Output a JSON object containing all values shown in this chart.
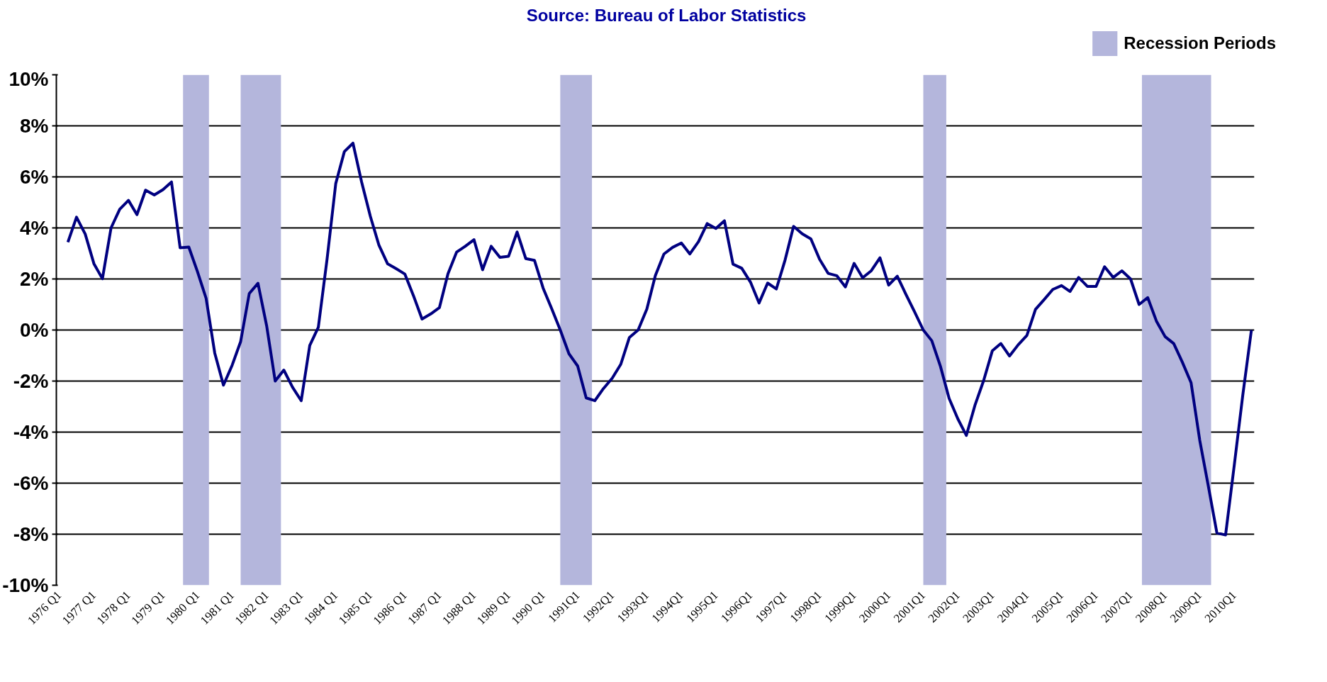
{
  "chart_data": {
    "type": "line",
    "annotations": [
      "Source: Bureau of Labor Statistics"
    ],
    "x": [
      "1976-04",
      "1976-07",
      "1976-10",
      "1977-01",
      "1977-04",
      "1977-07",
      "1977-10",
      "1978-01",
      "1978-04",
      "1978-07",
      "1978-10",
      "1979-01",
      "1979-04",
      "1979-07",
      "1979-10",
      "1980-01",
      "1980-04",
      "1980-07",
      "1980-10",
      "1981-01",
      "1981-04",
      "1981-07",
      "1981-10",
      "1982-01",
      "1982-04",
      "1982-07",
      "1982-10",
      "1983-01",
      "1983-04",
      "1983-07",
      "1983-10",
      "1984-01",
      "1984-04",
      "1984-07",
      "1984-10",
      "1985-01",
      "1985-04",
      "1985-07",
      "1985-10",
      "1986-01",
      "1986-04",
      "1986-07",
      "1986-10",
      "1987-01",
      "1987-04",
      "1987-07",
      "1987-10",
      "1988-01",
      "1988-04",
      "1988-07",
      "1988-10",
      "1989-01",
      "1989-04",
      "1989-07",
      "1989-10",
      "1990-01",
      "1990-04",
      "1990-07",
      "1990-10",
      "1991-01",
      "1991-04",
      "1991-07",
      "1991-10",
      "1992-01",
      "1992-04",
      "1992-07",
      "1992-10",
      "1993-01",
      "1993-04",
      "1993-07",
      "1993-10",
      "1994-01",
      "1994-04",
      "1994-07",
      "1994-10",
      "1995-01",
      "1995-04",
      "1995-07",
      "1995-10",
      "1996-01",
      "1996-04",
      "1996-07",
      "1996-10",
      "1997-01",
      "1997-04",
      "1997-07",
      "1997-10",
      "1998-01",
      "1998-04",
      "1998-07",
      "1998-10",
      "1999-01",
      "1999-04",
      "1999-07",
      "1999-10",
      "2000-01",
      "2000-04",
      "2000-07",
      "2000-10",
      "2001-01",
      "2001-04",
      "2001-07",
      "2001-10",
      "2002-01",
      "2002-04",
      "2002-07",
      "2002-10",
      "2003-01",
      "2003-04",
      "2003-07",
      "2003-10",
      "2004-01",
      "2004-04",
      "2004-07",
      "2004-10",
      "2005-01",
      "2005-04",
      "2005-07",
      "2005-10",
      "2006-01",
      "2006-04",
      "2006-07",
      "2006-10",
      "2007-01",
      "2007-04",
      "2007-07",
      "2007-10",
      "2008-01",
      "2008-04",
      "2008-07",
      "2008-10",
      "2009-01",
      "2009-04",
      "2009-07",
      "2009-10",
      "2010-01",
      "2010-04",
      "2010-07"
    ],
    "series": [
      {
        "color": "#000080",
        "values": [
          3.44,
          4.42,
          3.76,
          2.6,
          2.01,
          4.0,
          4.73,
          5.08,
          4.52,
          5.48,
          5.29,
          5.5,
          5.8,
          3.22,
          3.25,
          2.28,
          1.24,
          -0.9,
          -2.16,
          -1.38,
          -0.45,
          1.43,
          1.83,
          0.16,
          -2.0,
          -1.57,
          -2.24,
          -2.77,
          -0.61,
          0.11,
          2.77,
          5.74,
          6.99,
          7.32,
          5.79,
          4.45,
          3.33,
          2.6,
          2.4,
          2.19,
          1.35,
          0.43,
          0.63,
          0.88,
          2.2,
          3.05,
          3.28,
          3.54,
          2.36,
          3.28,
          2.85,
          2.89,
          3.84,
          2.8,
          2.73,
          1.64,
          0.84,
          0.0,
          -0.93,
          -1.41,
          -2.66,
          -2.77,
          -2.29,
          -1.89,
          -1.34,
          -0.29,
          0.0,
          0.82,
          2.13,
          2.98,
          3.24,
          3.41,
          2.98,
          3.46,
          4.17,
          3.98,
          4.28,
          2.58,
          2.42,
          1.88,
          1.06,
          1.84,
          1.61,
          2.74,
          4.06,
          3.77,
          3.57,
          2.77,
          2.22,
          2.13,
          1.69,
          2.61,
          2.05,
          2.32,
          2.83,
          1.76,
          2.11,
          1.4,
          0.71,
          0.0,
          -0.42,
          -1.42,
          -2.68,
          -3.48,
          -4.13,
          -2.95,
          -1.98,
          -0.81,
          -0.53,
          -1.02,
          -0.58,
          -0.21,
          0.81,
          1.19,
          1.59,
          1.74,
          1.51,
          2.06,
          1.71,
          1.71,
          2.48,
          2.06,
          2.32,
          2.0,
          1.0,
          1.27,
          0.35,
          -0.26,
          -0.53,
          -1.26,
          -2.06,
          -4.32,
          -6.1,
          -7.95,
          -8.03,
          -5.29,
          -2.55,
          0.0
        ]
      }
    ],
    "xlim": [
      "1975-12",
      "2010-08"
    ],
    "xticks": [
      {
        "value": "1976-01",
        "label": "1976 Q1"
      },
      {
        "value": "1977-01",
        "label": "1977 Q1"
      },
      {
        "value": "1978-01",
        "label": "1978 Q1"
      },
      {
        "value": "1979-01",
        "label": "1979 Q1"
      },
      {
        "value": "1980-01",
        "label": "1980 Q1"
      },
      {
        "value": "1981-01",
        "label": "1981 Q1"
      },
      {
        "value": "1982-01",
        "label": "1982 Q1"
      },
      {
        "value": "1983-01",
        "label": "1983 Q1"
      },
      {
        "value": "1984-01",
        "label": "1984 Q1"
      },
      {
        "value": "1985-01",
        "label": "1985 Q1"
      },
      {
        "value": "1986-01",
        "label": "1986 Q1"
      },
      {
        "value": "1987-01",
        "label": "1987 Q1"
      },
      {
        "value": "1988-01",
        "label": "1988 Q1"
      },
      {
        "value": "1989-01",
        "label": "1989 Q1"
      },
      {
        "value": "1990-01",
        "label": "1990 Q1"
      },
      {
        "value": "1991-01",
        "label": "1991Q1"
      },
      {
        "value": "1992-01",
        "label": "1992Q1"
      },
      {
        "value": "1993-01",
        "label": "1993Q1"
      },
      {
        "value": "1994-01",
        "label": "1994Q1"
      },
      {
        "value": "1995-01",
        "label": "1995Q1"
      },
      {
        "value": "1996-01",
        "label": "1996Q1"
      },
      {
        "value": "1997-01",
        "label": "1997Q1"
      },
      {
        "value": "1998-01",
        "label": "1998Q1"
      },
      {
        "value": "1999-01",
        "label": "1999Q1"
      },
      {
        "value": "2000-01",
        "label": "2000Q1"
      },
      {
        "value": "2001-01",
        "label": "2001Q1"
      },
      {
        "value": "2002-01",
        "label": "2002Q1"
      },
      {
        "value": "2003-01",
        "label": "2003Q1"
      },
      {
        "value": "2004-01",
        "label": "2004Q1"
      },
      {
        "value": "2005-01",
        "label": "2005Q1"
      },
      {
        "value": "2006-01",
        "label": "2006Q1"
      },
      {
        "value": "2007-01",
        "label": "2007Q1"
      },
      {
        "value": "2008-01",
        "label": "2008Q1"
      },
      {
        "value": "2009-01",
        "label": "2009Q1"
      },
      {
        "value": "2010-01",
        "label": "2010Q1"
      }
    ],
    "ylim": [
      -10,
      10
    ],
    "yticks": [
      {
        "value": -10,
        "label": "-10%"
      },
      {
        "value": -8,
        "label": "-8%"
      },
      {
        "value": -6,
        "label": "-6%"
      },
      {
        "value": -4,
        "label": "-4%"
      },
      {
        "value": -2,
        "label": "-2%"
      },
      {
        "value": 0,
        "label": "0%"
      },
      {
        "value": 2,
        "label": "2%"
      },
      {
        "value": 4,
        "label": "4%"
      },
      {
        "value": 6,
        "label": "6%"
      },
      {
        "value": 8,
        "label": "8%"
      },
      {
        "value": 10,
        "label": "10%"
      }
    ],
    "grid": "y",
    "legend": "top right",
    "bands": [
      {
        "axis": "x",
        "from": "1979-08",
        "to": "1980-05",
        "label": "Recession Periods",
        "color": "#b4b6dc"
      },
      {
        "axis": "x",
        "from": "1981-04",
        "to": "1982-06",
        "color": "#b4b6dc"
      },
      {
        "axis": "x",
        "from": "1990-07",
        "to": "1991-06",
        "color": "#b4b6dc"
      },
      {
        "axis": "x",
        "from": "2001-01",
        "to": "2001-09",
        "color": "#b4b6dc"
      },
      {
        "axis": "x",
        "from": "2007-05",
        "to": "2009-05",
        "color": "#b4b6dc"
      }
    ]
  }
}
